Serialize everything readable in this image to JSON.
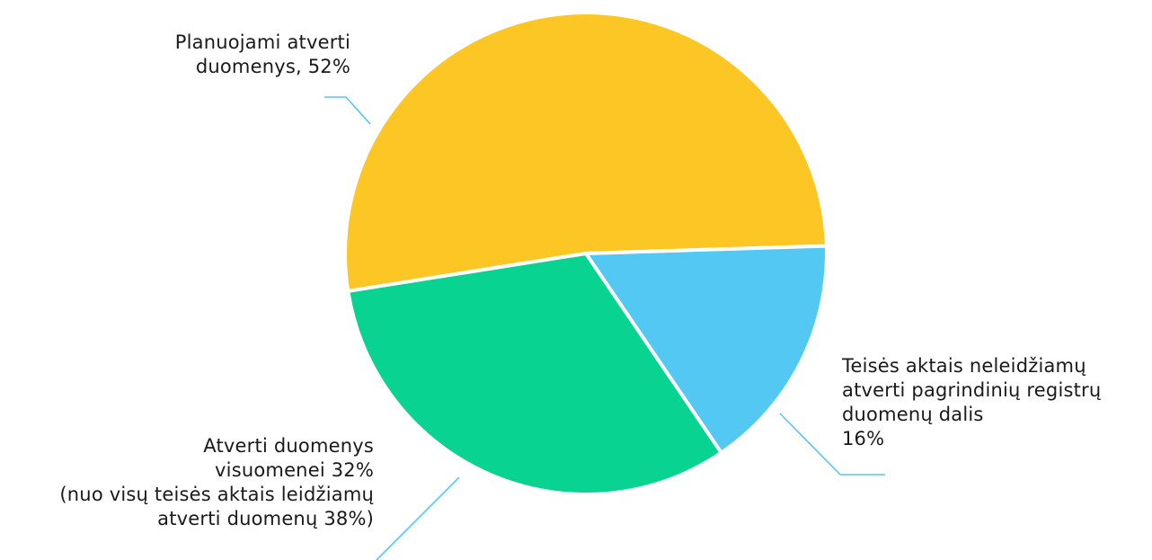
{
  "chart_data": {
    "type": "pie",
    "slices": [
      {
        "label_lines": [
          "Planuojami atverti",
          "duomenys, 52%"
        ],
        "value": 52,
        "color": "#FCC624"
      },
      {
        "label_lines": [
          "Teisės aktais neleidžiamų",
          "atverti pagrindinių registrų",
          "duomenų dalis",
          "16%"
        ],
        "value": 16,
        "color": "#52C8F2"
      },
      {
        "label_lines": [
          "Atverti duomenys",
          "visuomenei  32%",
          "(nuo visų teisės aktais leidžiamų",
          "atverti duomenų 38%)"
        ],
        "value": 32,
        "color": "#08D390"
      }
    ],
    "leader_color": "#52C8F2"
  }
}
